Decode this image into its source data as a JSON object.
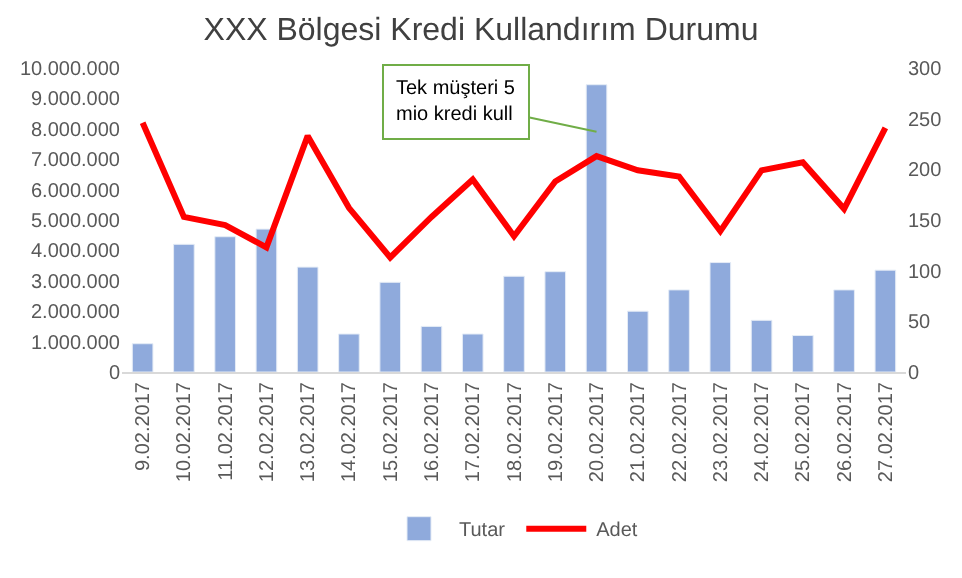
{
  "chart_data": {
    "type": "bar",
    "title": "XXX Bölgesi Kredi Kullandırım Durumu",
    "categories": [
      "9.02.2017",
      "10.02.2017",
      "11.02.2017",
      "12.02.2017",
      "13.02.2017",
      "14.02.2017",
      "15.02.2017",
      "16.02.2017",
      "17.02.2017",
      "18.02.2017",
      "19.02.2017",
      "20.02.2017",
      "21.02.2017",
      "22.02.2017",
      "23.02.2017",
      "24.02.2017",
      "25.02.2017",
      "26.02.2017",
      "27.02.2017"
    ],
    "series": [
      {
        "name": "Tutar",
        "color": "#8faadc",
        "values": [
          930000,
          4200000,
          4450000,
          4700000,
          3450000,
          1250000,
          2950000,
          1500000,
          1250000,
          3150000,
          3300000,
          9450000,
          2000000,
          2700000,
          3600000,
          1700000,
          1200000,
          2700000,
          3350000
        ]
      },
      {
        "name": "Adet",
        "type": "line",
        "axis": "y2",
        "color": "#ff0000",
        "values": [
          246,
          153,
          145,
          123,
          233,
          162,
          113,
          153,
          190,
          134,
          188,
          213,
          199,
          193,
          139,
          199,
          207,
          161,
          241
        ]
      }
    ],
    "ylim": [
      0,
      10000000
    ],
    "yticks": [
      {
        "value": 0,
        "label": "0"
      },
      {
        "value": 1000000,
        "label": "1.000.000"
      },
      {
        "value": 2000000,
        "label": "2.000.000"
      },
      {
        "value": 3000000,
        "label": "3.000.000"
      },
      {
        "value": 4000000,
        "label": "4.000.000"
      },
      {
        "value": 5000000,
        "label": "5.000.000"
      },
      {
        "value": 6000000,
        "label": "6.000.000"
      },
      {
        "value": 7000000,
        "label": "7.000.000"
      },
      {
        "value": 8000000,
        "label": "8.000.000"
      },
      {
        "value": 9000000,
        "label": "9.000.000"
      },
      {
        "value": 10000000,
        "label": "10.000.000"
      }
    ],
    "y2lim": [
      0,
      300
    ],
    "y2ticks": [
      0,
      50,
      100,
      150,
      200,
      250,
      300
    ],
    "annotations": [
      {
        "text": "Tek müşteri 5\nmio kredi kull",
        "x": "20.02.2017",
        "y": 7900000
      }
    ],
    "legend": "bottom",
    "marker": "none",
    "line_style": "solid"
  }
}
